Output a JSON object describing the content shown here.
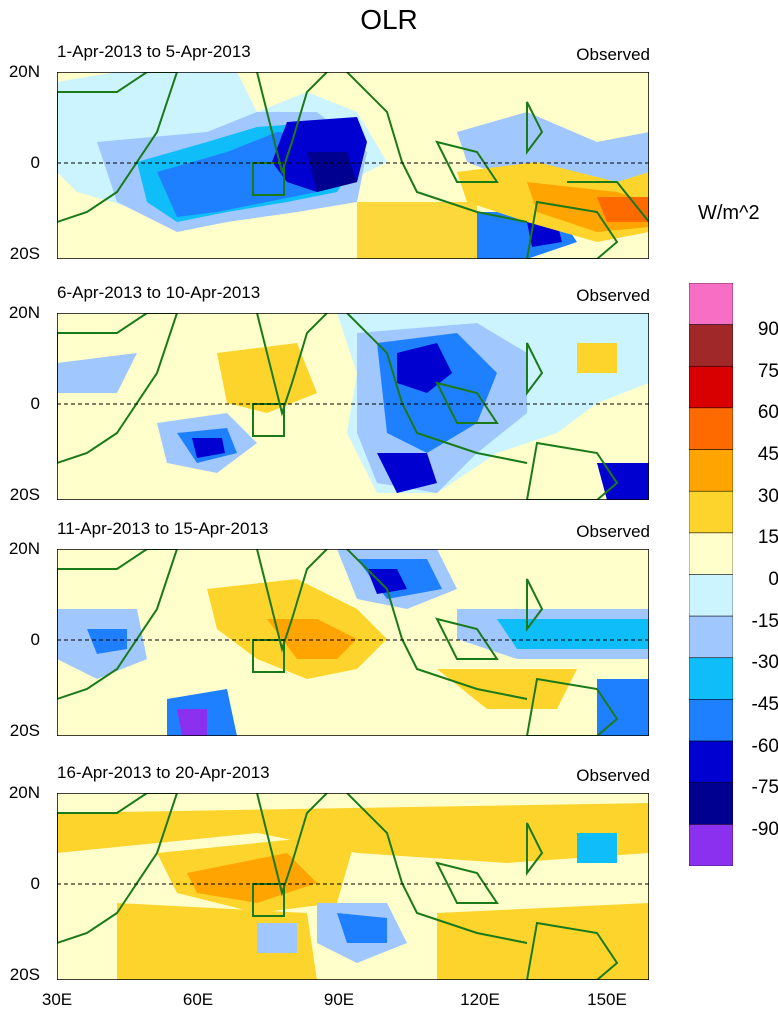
{
  "title": "OLR",
  "units": "W/m^2",
  "lat_labels": [
    "20N",
    "0",
    "20S"
  ],
  "lon_labels": [
    "30E",
    "60E",
    "90E",
    "120E",
    "150E"
  ],
  "panels": [
    {
      "period": "1-Apr-2013 to 5-Apr-2013",
      "source": "Observed"
    },
    {
      "period": "6-Apr-2013 to 10-Apr-2013",
      "source": "Observed"
    },
    {
      "period": "11-Apr-2013 to 15-Apr-2013",
      "source": "Observed"
    },
    {
      "period": "16-Apr-2013 to 20-Apr-2013",
      "source": "Observed"
    }
  ],
  "colorbar": {
    "labels": [
      "90",
      "75",
      "60",
      "45",
      "30",
      "15",
      "0",
      "-15",
      "-30",
      "-45",
      "-60",
      "-75",
      "-90"
    ],
    "colors": [
      "#f76fc4",
      "#a02828",
      "#d80000",
      "#ff6a00",
      "#ffa400",
      "#fdd42c",
      "#ffffcc",
      "#ccf4ff",
      "#a0c8ff",
      "#0fbef8",
      "#1f80ff",
      "#0000d0",
      "#000090",
      "#8c30f0"
    ]
  }
}
